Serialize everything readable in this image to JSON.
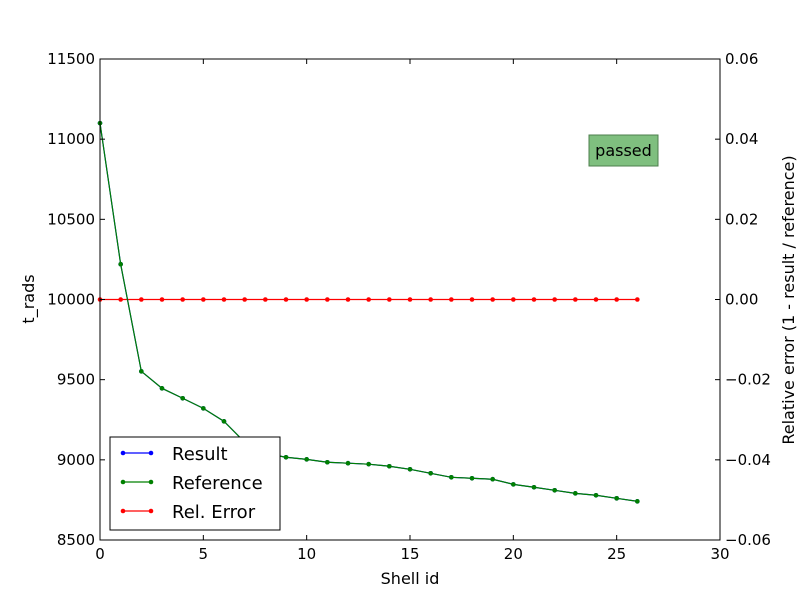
{
  "chart_data": {
    "type": "line",
    "xlabel": "Shell id",
    "ylabel": "t_rads",
    "y2label": "Relative error (1 - result / reference)",
    "xlim": [
      0,
      30
    ],
    "ylim": [
      8500,
      11500
    ],
    "y2lim": [
      -0.06,
      0.06
    ],
    "xticks": [
      "0",
      "5",
      "10",
      "15",
      "20",
      "25",
      "30"
    ],
    "yticks": [
      "8500",
      "9000",
      "9500",
      "10000",
      "10500",
      "11000",
      "11500"
    ],
    "y2ticks": [
      "−0.06",
      "−0.04",
      "−0.02",
      "0.00",
      "0.02",
      "0.04",
      "0.06"
    ],
    "grid": false,
    "legend_position": "bottom-left",
    "annotation": {
      "text": "passed",
      "color": "#7fbf7f"
    },
    "x": [
      0,
      1,
      2,
      3,
      4,
      5,
      6,
      7,
      8,
      9,
      10,
      11,
      12,
      13,
      14,
      15,
      16,
      17,
      18,
      19,
      20,
      21,
      22,
      23,
      24,
      25,
      26
    ],
    "series": [
      {
        "name": "Result",
        "axis": "left",
        "color": "#0000ff",
        "values": [
          11100,
          10220,
          9552,
          9446,
          9384,
          9321,
          9240,
          9110,
          9040,
          9016,
          9003,
          8985,
          8979,
          8973,
          8960,
          8941,
          8916,
          8891,
          8885,
          8879,
          8847,
          8829,
          8810,
          8791,
          8779,
          8760,
          8741
        ]
      },
      {
        "name": "Reference",
        "axis": "left",
        "color": "#008000",
        "values": [
          11100,
          10220,
          9552,
          9446,
          9384,
          9321,
          9240,
          9110,
          9040,
          9016,
          9003,
          8985,
          8979,
          8973,
          8960,
          8941,
          8916,
          8891,
          8885,
          8879,
          8847,
          8829,
          8810,
          8791,
          8779,
          8760,
          8741
        ]
      },
      {
        "name": "Rel. Error",
        "axis": "right",
        "color": "#ff0000",
        "values": [
          0,
          0,
          0,
          0,
          0,
          0,
          0,
          0,
          0,
          0,
          0,
          0,
          0,
          0,
          0,
          0,
          0,
          0,
          0,
          0,
          0,
          0,
          0,
          0,
          0,
          0,
          0
        ]
      }
    ]
  }
}
